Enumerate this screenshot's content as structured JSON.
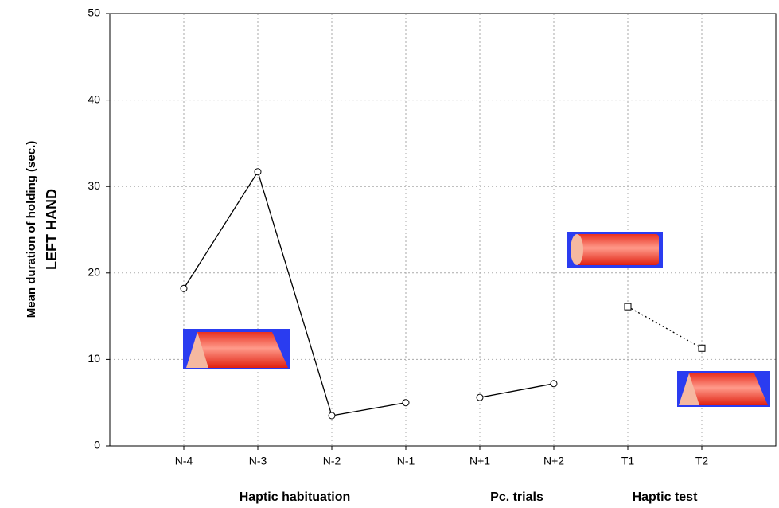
{
  "chart_data": {
    "type": "line",
    "y_label": "Mean duration of holding (sec.)",
    "y_label_2": "LEFT HAND",
    "categories": [
      "N-4",
      "N-3",
      "N-2",
      "N-1",
      "N+1",
      "N+2",
      "T1",
      "T2"
    ],
    "groups": [
      "Haptic habituation",
      "Pc. trials",
      "Haptic test"
    ],
    "series": [
      {
        "color": "#000000",
        "marker": "circle",
        "linestyle": "solid",
        "values": [
          18.2,
          31.7,
          3.5,
          5.0,
          null,
          null,
          null,
          null
        ]
      },
      {
        "color": "#000000",
        "marker": "circle",
        "linestyle": "solid",
        "values": [
          null,
          null,
          null,
          null,
          5.6,
          7.2,
          null,
          null
        ]
      },
      {
        "color": "#000000",
        "marker": "square",
        "linestyle": "dotted",
        "values": [
          null,
          null,
          null,
          null,
          null,
          null,
          16.1,
          11.3
        ]
      }
    ],
    "ylim": [
      0,
      50
    ],
    "yticks": [
      0,
      10,
      20,
      30,
      40,
      50
    ],
    "grid": true
  }
}
